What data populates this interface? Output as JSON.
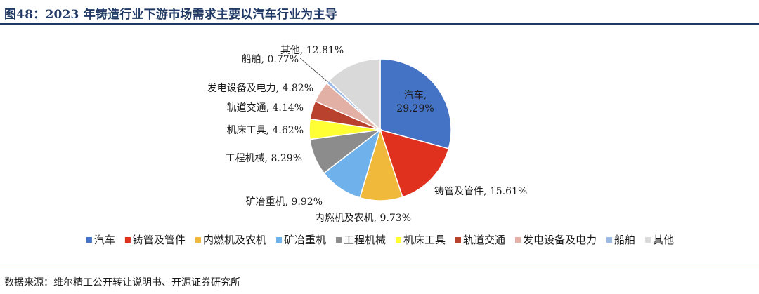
{
  "header": {
    "title": "图48：2023 年铸造行业下游市场需求主要以汽车行业为主导"
  },
  "footer": {
    "source": "数据来源：维尔精工公开转让说明书、开源证券研究所"
  },
  "colors": {
    "title": "#1f3864",
    "rule": "#1f3864"
  },
  "chart_data": {
    "type": "pie",
    "title": "",
    "legend_position": "bottom",
    "series": [
      {
        "name": "",
        "slices": [
          {
            "label": "汽车",
            "value": 29.29,
            "display": "29.29%",
            "color": "#4472c4"
          },
          {
            "label": "铸管及管件",
            "value": 15.61,
            "display": "15.61%",
            "color": "#e0301e"
          },
          {
            "label": "内燃机及农机",
            "value": 9.73,
            "display": "9.73%",
            "color": "#f0b93c"
          },
          {
            "label": "矿冶重机",
            "value": 9.92,
            "display": "9.92%",
            "color": "#6fb1ea"
          },
          {
            "label": "工程机械",
            "value": 8.29,
            "display": "8.29%",
            "color": "#8c8c8c"
          },
          {
            "label": "机床工具",
            "value": 4.62,
            "display": "4.62%",
            "color": "#ffff33"
          },
          {
            "label": "轨道交通",
            "value": 4.14,
            "display": "4.14%",
            "color": "#b8422e"
          },
          {
            "label": "发电设备及电力",
            "value": 4.82,
            "display": "4.82%",
            "color": "#e3b0a6"
          },
          {
            "label": "船舶",
            "value": 0.77,
            "display": "0.77%",
            "color": "#9bbbe6"
          },
          {
            "label": "其他",
            "value": 12.81,
            "display": "12.81%",
            "color": "#d9d9d9"
          }
        ]
      }
    ]
  }
}
